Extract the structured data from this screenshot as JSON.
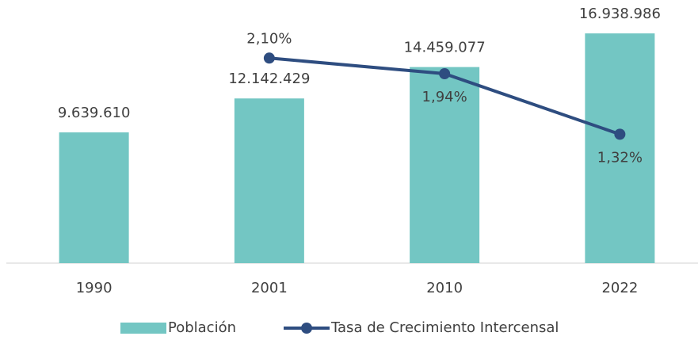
{
  "chart_data": {
    "type": "bar_line",
    "categories": [
      "1990",
      "2001",
      "2010",
      "2022"
    ],
    "series": [
      {
        "name": "Población",
        "type": "bar",
        "color": "#73c6c3",
        "values": [
          9639610,
          12142429,
          14459077,
          16938986
        ],
        "value_labels": [
          "9.639.610",
          "12.142.429",
          "14.459.077",
          "16.938.986"
        ]
      },
      {
        "name": "Tasa de Crecimiento Intercensal",
        "type": "line",
        "axis": "y2",
        "color": "#2e4d80",
        "values": [
          null,
          2.1,
          1.94,
          1.32
        ],
        "value_labels": [
          null,
          "2,10%",
          "1,94%",
          "1,32%"
        ]
      }
    ],
    "ylim": [
      0,
      18000000
    ],
    "y2lim": [
      0,
      2.5
    ],
    "legend": "bottom"
  }
}
